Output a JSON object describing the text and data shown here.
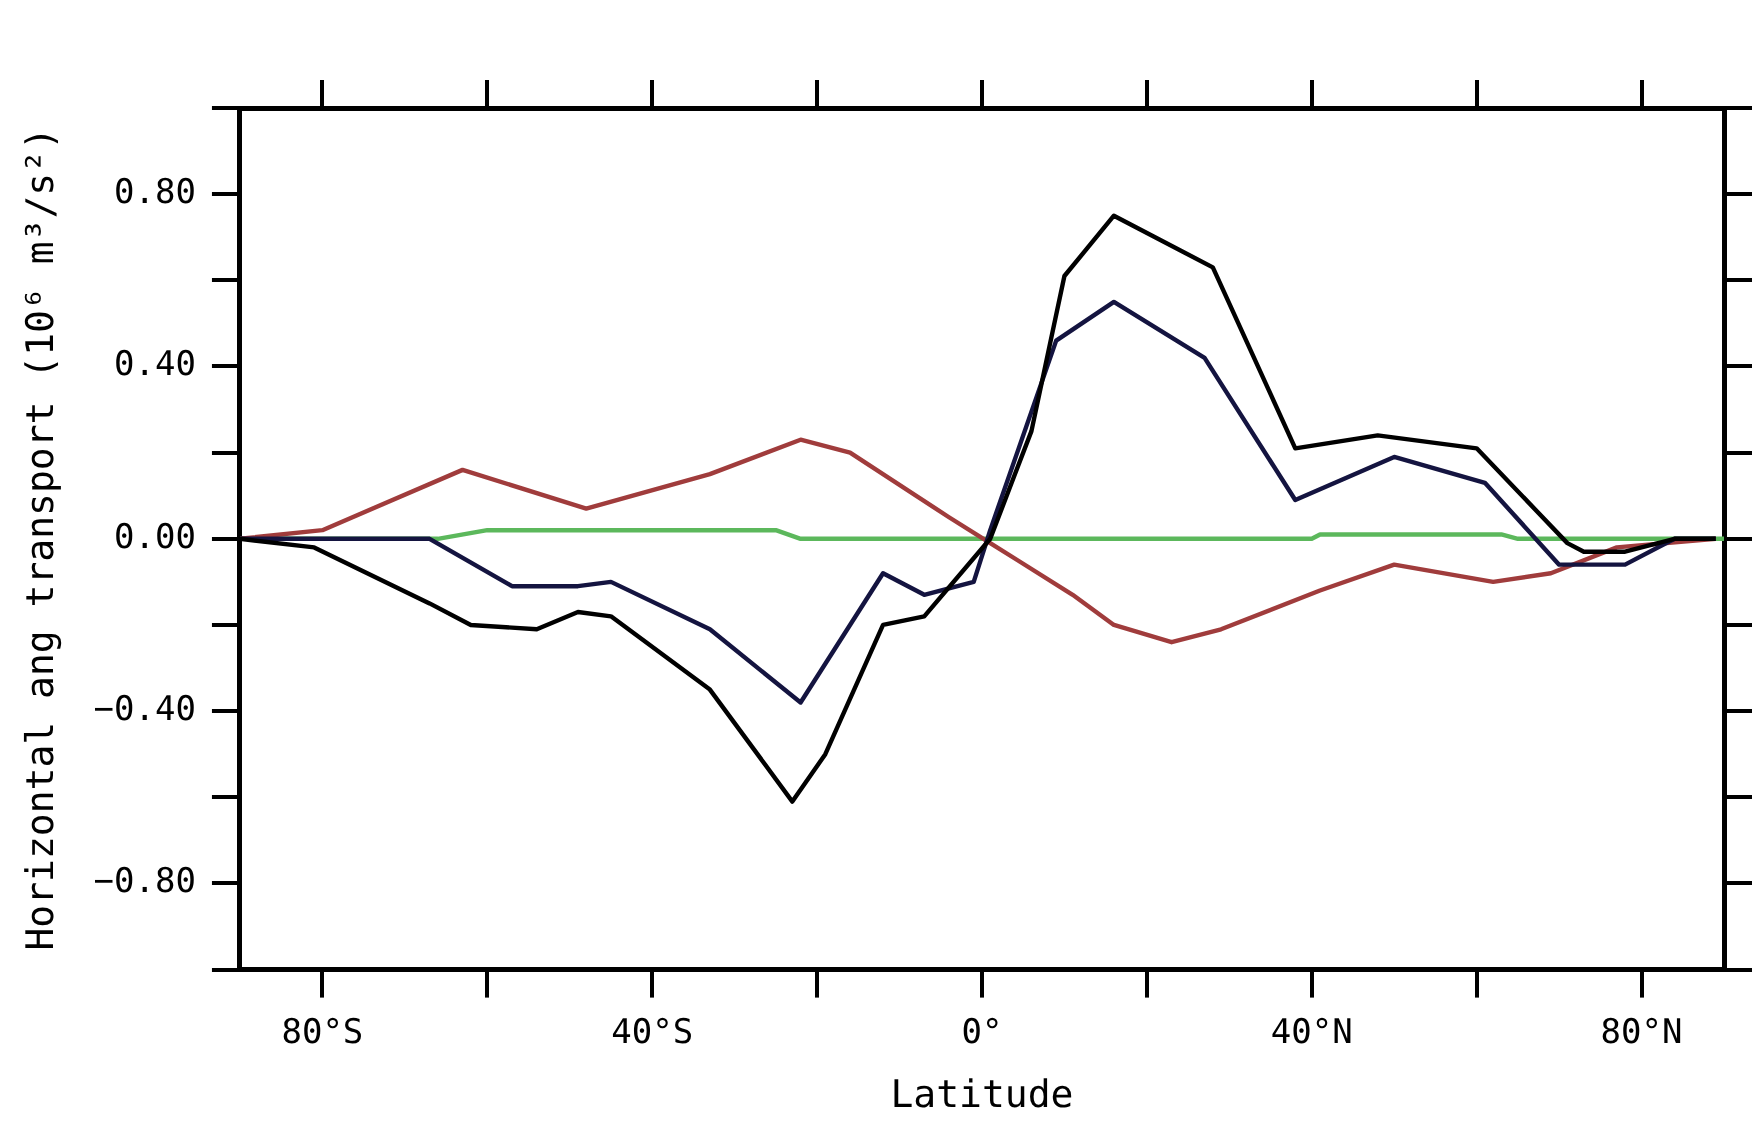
{
  "chart_data": {
    "type": "line",
    "xlabel": "Latitude",
    "ylabel": "Horizontal ang transport (10⁶ m³/s²)",
    "xlim": [
      -90,
      90
    ],
    "ylim": [
      -1,
      1
    ],
    "xticks": [
      {
        "value": -80,
        "label": "80°S"
      },
      {
        "value": -60,
        "label": null
      },
      {
        "value": -40,
        "label": "40°S"
      },
      {
        "value": -20,
        "label": null
      },
      {
        "value": 0,
        "label": "0°"
      },
      {
        "value": 20,
        "label": null
      },
      {
        "value": 40,
        "label": "40°N"
      },
      {
        "value": 60,
        "label": null
      },
      {
        "value": 80,
        "label": "80°N"
      }
    ],
    "yticks": [
      {
        "value": -1,
        "label": null
      },
      {
        "value": -0.8,
        "label": "−0.80"
      },
      {
        "value": -0.6,
        "label": null
      },
      {
        "value": -0.4,
        "label": "−0.40"
      },
      {
        "value": -0.2,
        "label": null
      },
      {
        "value": 0,
        "label": "0.00"
      },
      {
        "value": 0.2,
        "label": null
      },
      {
        "value": 0.4,
        "label": "0.40"
      },
      {
        "value": 0.6,
        "label": null
      },
      {
        "value": 0.8,
        "label": "0.80"
      },
      {
        "value": 1,
        "label": null
      }
    ],
    "grid": false,
    "legend": false,
    "marker": "none",
    "line_style": "solid",
    "series": [
      {
        "color": "#000000",
        "x": [
          -90,
          -81,
          -67,
          -62,
          -54,
          -49,
          -45,
          -33,
          -23,
          -19,
          -12,
          -7,
          1,
          6,
          10,
          16,
          28,
          38,
          48,
          60,
          71,
          73,
          78,
          84,
          89
        ],
        "values": [
          0,
          -0.02,
          -0.15,
          -0.2,
          -0.21,
          -0.17,
          -0.18,
          -0.35,
          -0.61,
          -0.5,
          -0.2,
          -0.18,
          0,
          0.25,
          0.61,
          0.75,
          0.63,
          0.21,
          0.24,
          0.21,
          -0.01,
          -0.03,
          -0.03,
          0,
          0
        ]
      },
      {
        "color": "#141440",
        "x": [
          -90,
          -67,
          -57,
          -49,
          -45,
          -33,
          -22,
          -12,
          -7,
          -1,
          1,
          9,
          16,
          27,
          38,
          50,
          61,
          70,
          78,
          84,
          89
        ],
        "values": [
          0,
          0,
          -0.11,
          -0.11,
          -0.1,
          -0.21,
          -0.38,
          -0.08,
          -0.13,
          -0.1,
          0.02,
          0.46,
          0.55,
          0.42,
          0.09,
          0.19,
          0.13,
          -0.06,
          -0.06,
          0,
          0
        ]
      },
      {
        "color": "#a03c3c",
        "x": [
          -90,
          -80,
          -63,
          -48,
          -33,
          -22,
          -16,
          -4,
          1,
          11,
          16,
          23,
          29,
          41,
          50,
          62,
          69,
          77,
          89
        ],
        "values": [
          0,
          0.02,
          0.16,
          0.07,
          0.15,
          0.23,
          0.2,
          0.05,
          -0.01,
          -0.13,
          -0.2,
          -0.24,
          -0.21,
          -0.12,
          -0.06,
          -0.1,
          -0.08,
          -0.02,
          0
        ]
      },
      {
        "color": "#5cb85c",
        "x": [
          -90,
          -66,
          -60,
          -25,
          -22,
          40,
          41,
          63,
          65,
          90
        ],
        "values": [
          0,
          0,
          0.02,
          0.02,
          0,
          0,
          0.01,
          0.01,
          0,
          0
        ]
      }
    ]
  }
}
